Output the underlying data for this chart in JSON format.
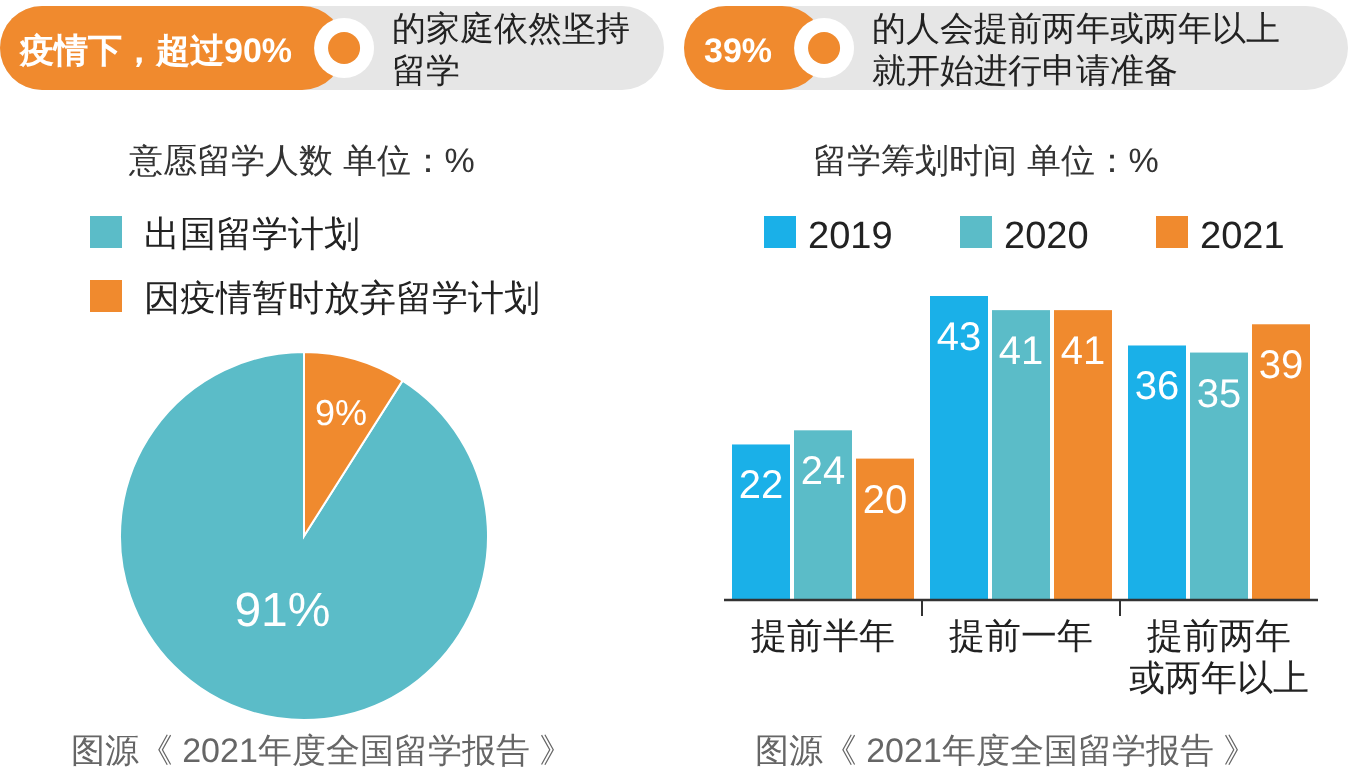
{
  "chart_data": [
    {
      "type": "pie",
      "title": "疫情下，超过90%",
      "subtitle": "的家庭依然坚持留学",
      "annotations": [
        "意愿留学人数  单位：%",
        "图源《 2021年度全国留学报告 》"
      ],
      "categories": [
        "出国留学计划",
        "因疫情暂时放弃留学计划"
      ],
      "values": [
        91,
        9
      ],
      "colors": [
        "#5bbcc8",
        "#f08a2e"
      ],
      "value_labels": [
        "91%",
        "9%"
      ],
      "legend": "top left"
    },
    {
      "type": "bar",
      "title": "39%",
      "subtitle": "的人会提前两年或两年以上就开始进行申请准备",
      "annotations": [
        "留学筹划时间  单位：%",
        "图源《 2021年度全国留学报告 》"
      ],
      "categories": [
        "提前半年",
        "提前一年",
        "提前两年或两年以上"
      ],
      "series": [
        {
          "name": "2019",
          "color": "#1ab0e8",
          "values": [
            22,
            43,
            36
          ]
        },
        {
          "name": "2020",
          "color": "#5bbcc8",
          "values": [
            24,
            41,
            35
          ]
        },
        {
          "name": "2021",
          "color": "#f08a2e",
          "values": [
            20,
            41,
            39
          ]
        }
      ],
      "data_labels": true,
      "legend": "top"
    }
  ]
}
